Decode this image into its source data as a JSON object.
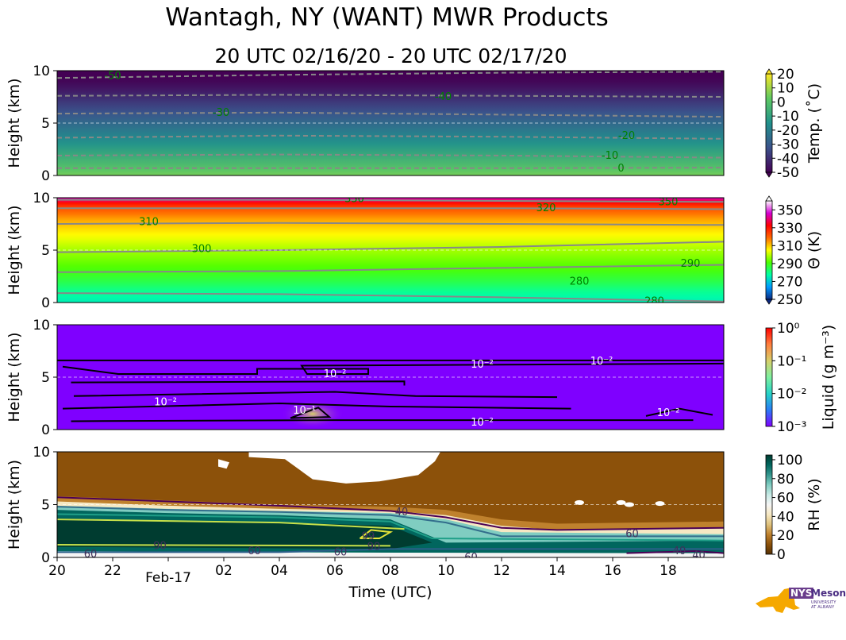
{
  "title": "Wantagh, NY (WANT) MWR Products",
  "subtitle": "20 UTC 02/16/20 - 20 UTC 02/17/20",
  "x_axis": {
    "label": "Time (UTC)",
    "range_hours": [
      0,
      24
    ],
    "ticks": [
      {
        "h": 0,
        "label": "20"
      },
      {
        "h": 2,
        "label": "22"
      },
      {
        "h": 6,
        "label": "02"
      },
      {
        "h": 8,
        "label": "04"
      },
      {
        "h": 10,
        "label": "06"
      },
      {
        "h": 12,
        "label": "08"
      },
      {
        "h": 14,
        "label": "10"
      },
      {
        "h": 16,
        "label": "12"
      },
      {
        "h": 18,
        "label": "14"
      },
      {
        "h": 20,
        "label": "16"
      },
      {
        "h": 22,
        "label": "18"
      }
    ],
    "date_tick": {
      "h": 4,
      "label": "Feb-17"
    }
  },
  "logo": {
    "nys": "NYS",
    "mesonet": "Mesonet",
    "university": "UNIVERSITY AT ALBANY"
  },
  "chart_data": [
    {
      "type": "heatmap",
      "name": "temperature",
      "ylabel": "Height (km)",
      "ylim": [
        0,
        10
      ],
      "yticks": [
        "0",
        "5",
        "10"
      ],
      "colorbar_label": "Temp. (˚C)",
      "colorbar_ticks": [
        "20",
        "10",
        "0",
        "-10",
        "-20",
        "-30",
        "-40",
        "-50"
      ],
      "colorbar_range": [
        -50,
        20
      ],
      "cmap": [
        "#440154",
        "#3b528b",
        "#21918c",
        "#5ec962",
        "#fde725"
      ],
      "profile": [
        [
          0,
          5
        ],
        [
          1,
          -2
        ],
        [
          2,
          -8
        ],
        [
          3,
          -14
        ],
        [
          4,
          -20
        ],
        [
          5,
          -26
        ],
        [
          6,
          -32
        ],
        [
          7,
          -38
        ],
        [
          8,
          -44
        ],
        [
          9,
          -49
        ],
        [
          10,
          -53
        ]
      ],
      "contours": [
        {
          "label": "0",
          "km": [
            0.7,
            0.7,
            0.7,
            0.75
          ]
        },
        {
          "label": "-10",
          "km": [
            1.9,
            2.0,
            1.9,
            1.7
          ]
        },
        {
          "label": "-20",
          "km": [
            3.6,
            3.8,
            3.7,
            3.5
          ]
        },
        {
          "label": "-30",
          "km": [
            5.9,
            6.0,
            5.8,
            5.6
          ]
        },
        {
          "label": "-40",
          "km": [
            7.6,
            7.7,
            7.6,
            7.5
          ]
        },
        {
          "label": "-50",
          "km": [
            9.3,
            9.6,
            9.8,
            9.9
          ]
        }
      ],
      "contour_labels": [
        {
          "text": "-50",
          "h": 2.0,
          "km": 9.5
        },
        {
          "text": "-40",
          "h": 13.9,
          "km": 7.5
        },
        {
          "text": "-30",
          "h": 5.9,
          "km": 6.0
        },
        {
          "text": "-20",
          "h": 20.5,
          "km": 3.8
        },
        {
          "text": "-10",
          "h": 19.9,
          "km": 1.9
        },
        {
          "text": "0",
          "h": 20.3,
          "km": 0.7
        }
      ]
    },
    {
      "type": "heatmap",
      "name": "potential_temperature",
      "ylabel": "Height (km)",
      "ylim": [
        0,
        10
      ],
      "yticks": [
        "0",
        "5",
        "10"
      ],
      "colorbar_label": "Θ (K)",
      "colorbar_ticks": [
        "350",
        "330",
        "310",
        "290",
        "270",
        "250"
      ],
      "colorbar_range": [
        250,
        360
      ],
      "cmap": [
        "#0c2a82",
        "#0099ff",
        "#00ffa6",
        "#4cff00",
        "#ffff00",
        "#ff6a00",
        "#ff0000",
        "#d400d4",
        "#ffffff"
      ],
      "profile": [
        [
          0,
          275
        ],
        [
          1,
          279
        ],
        [
          2,
          285
        ],
        [
          3,
          290
        ],
        [
          4,
          294
        ],
        [
          5,
          298
        ],
        [
          6,
          303
        ],
        [
          7,
          308
        ],
        [
          8,
          314
        ],
        [
          9,
          322
        ],
        [
          9.7,
          335
        ],
        [
          10,
          345
        ]
      ],
      "contours": [
        {
          "label": "280",
          "km": [
            0.9,
            0.8,
            0.5,
            0.1
          ]
        },
        {
          "label": "290",
          "km": [
            2.9,
            3.0,
            3.3,
            3.6
          ]
        },
        {
          "label": "300",
          "km": [
            4.8,
            5.0,
            5.3,
            5.8
          ]
        },
        {
          "label": "310",
          "km": [
            7.5,
            7.6,
            7.5,
            7.4
          ]
        },
        {
          "label": "320",
          "km": [
            9.0,
            9.0,
            9.0,
            8.9
          ]
        },
        {
          "label": "330",
          "km": [
            9.8,
            9.8,
            9.7,
            9.6
          ]
        }
      ],
      "contour_labels": [
        {
          "text": "310",
          "h": 3.3,
          "km": 7.7
        },
        {
          "text": "300",
          "h": 5.2,
          "km": 5.1
        },
        {
          "text": "320",
          "h": 17.6,
          "km": 9.0
        },
        {
          "text": "290",
          "h": 22.8,
          "km": 3.7
        },
        {
          "text": "280",
          "h": 18.8,
          "km": 2.0
        },
        {
          "text": "350",
          "h": 22.0,
          "km": 9.6
        },
        {
          "text": "350",
          "h": 10.7,
          "km": 9.9
        },
        {
          "text": "280",
          "h": 21.5,
          "km": 0.1
        }
      ]
    },
    {
      "type": "heatmap",
      "name": "liquid_water",
      "ylabel": "Height (km)",
      "ylim": [
        0,
        10
      ],
      "yticks": [
        "0",
        "5",
        "10"
      ],
      "colorbar_label": "Liquid (g m⁻³)",
      "colorbar_scale": "log",
      "colorbar_ticks": [
        "10⁰",
        "10⁻¹",
        "10⁻²",
        "10⁻³"
      ],
      "colorbar_range": [
        0.001,
        1
      ],
      "cmap": [
        "#7f00ff",
        "#2a7cf6",
        "#26d4c7",
        "#7ff0a0",
        "#d7d06b",
        "#ff7f3f",
        "#ff0000"
      ],
      "background_value": 0.001,
      "blob": {
        "h": 9.2,
        "km": 1.5,
        "value": 0.1
      },
      "contour_labels": [
        {
          "text": "10⁻²",
          "h": 10.0,
          "km": 5.3
        },
        {
          "text": "10⁻²",
          "h": 15.3,
          "km": 6.2
        },
        {
          "text": "10⁻²",
          "h": 19.6,
          "km": 6.5
        },
        {
          "text": "10⁻²",
          "h": 3.9,
          "km": 2.6
        },
        {
          "text": "10⁻¹",
          "h": 8.9,
          "km": 1.8
        },
        {
          "text": "10⁻²",
          "h": 15.3,
          "km": 0.7
        },
        {
          "text": "10⁻²",
          "h": 22.0,
          "km": 1.6
        }
      ]
    },
    {
      "type": "heatmap",
      "name": "relative_humidity",
      "ylabel": "Height (km)",
      "ylim": [
        0,
        10
      ],
      "yticks": [
        "0",
        "5",
        "10"
      ],
      "colorbar_label": "RH (%)",
      "colorbar_ticks": [
        "100",
        "80",
        "60",
        "40",
        "20",
        "0"
      ],
      "colorbar_range": [
        0,
        105
      ],
      "cmap": [
        "#543005",
        "#8c510a",
        "#bf812d",
        "#dfc27d",
        "#f6e8c3",
        "#f5f5f5",
        "#c7eae5",
        "#80cdc1",
        "#35978f",
        "#01665e",
        "#003c30"
      ],
      "contour_labels": [
        {
          "text": "40",
          "h": 12.4,
          "km": 4.3
        },
        {
          "text": "99",
          "h": 11.2,
          "km": 2.0
        },
        {
          "text": "90",
          "h": 3.7,
          "km": 1.1
        },
        {
          "text": "90",
          "h": 11.4,
          "km": 1.0
        },
        {
          "text": "60",
          "h": 1.2,
          "km": 0.3
        },
        {
          "text": "60",
          "h": 7.1,
          "km": 0.6
        },
        {
          "text": "60",
          "h": 10.2,
          "km": 0.5
        },
        {
          "text": "60",
          "h": 14.9,
          "km": 0.0
        },
        {
          "text": "60",
          "h": 20.7,
          "km": 2.2
        },
        {
          "text": "40",
          "h": 22.4,
          "km": 0.6
        },
        {
          "text": "40",
          "h": 23.1,
          "km": 0.2
        }
      ]
    }
  ]
}
